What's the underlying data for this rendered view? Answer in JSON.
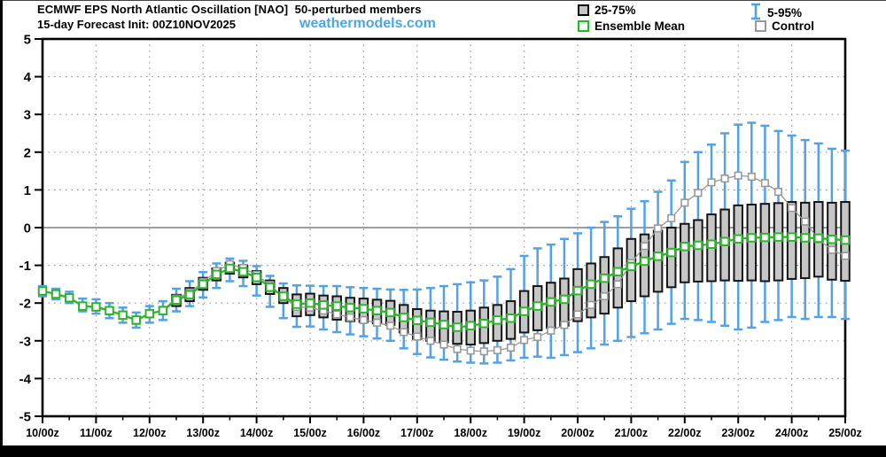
{
  "header": {
    "title": "ECMWF EPS North Atlantic Oscillation [NAO]  50-perturbed members",
    "subtitle": "15-day Forecast Init: 00Z10NOV2025",
    "watermark": "weathermodels.com",
    "watermark_color": "#4BA6E8"
  },
  "legend": {
    "items": [
      {
        "label": "25-75%",
        "swatch": "gray-box"
      },
      {
        "label": "5-95%",
        "swatch": "blue-whisker"
      },
      {
        "label": "Ensemble Mean",
        "swatch": "green-square"
      },
      {
        "label": "Control",
        "swatch": "white-square"
      }
    ]
  },
  "colors": {
    "whisker_blue": "#54A1E6",
    "mean_green": "#2DB42D",
    "box_fill": "#C6C6C6",
    "box_edge": "#141414",
    "control_gray": "#999999",
    "grid_gray": "#9A9A9A",
    "zero_line": "#7F7F7F",
    "frame": "#000000"
  },
  "chart_data": {
    "type": "box-whisker-timeseries",
    "title": "ECMWF EPS North Atlantic Oscillation [NAO] 50-perturbed members",
    "xlabel": "",
    "ylabel": "",
    "ylim": [
      -5,
      5
    ],
    "yticks": [
      5,
      4,
      3,
      2,
      1,
      0,
      -1,
      -2,
      -3,
      -4,
      -5
    ],
    "x_labels": [
      "10/00z",
      "11/00z",
      "12/00z",
      "13/00z",
      "14/00z",
      "15/00z",
      "16/00z",
      "17/00z",
      "18/00z",
      "19/00z",
      "20/00z",
      "21/00z",
      "22/00z",
      "23/00z",
      "24/00z",
      "25/00z"
    ],
    "points_per_day": 4,
    "grid": "dotted",
    "mean": [
      -1.68,
      -1.76,
      -1.86,
      -2.08,
      -2.1,
      -2.2,
      -2.32,
      -2.45,
      -2.28,
      -2.2,
      -1.92,
      -1.78,
      -1.5,
      -1.24,
      -1.08,
      -1.17,
      -1.32,
      -1.58,
      -1.82,
      -2.03,
      -2.0,
      -2.05,
      -2.08,
      -2.12,
      -2.15,
      -2.2,
      -2.25,
      -2.38,
      -2.46,
      -2.51,
      -2.57,
      -2.64,
      -2.6,
      -2.54,
      -2.45,
      -2.4,
      -2.22,
      -2.08,
      -1.97,
      -1.9,
      -1.67,
      -1.5,
      -1.34,
      -1.17,
      -1.03,
      -0.89,
      -0.76,
      -0.66,
      -0.5,
      -0.47,
      -0.44,
      -0.37,
      -0.3,
      -0.27,
      -0.26,
      -0.25,
      -0.25,
      -0.27,
      -0.28,
      -0.31,
      -0.33
    ],
    "control": [
      -1.68,
      -1.77,
      -1.87,
      -2.09,
      -2.12,
      -2.21,
      -2.33,
      -2.47,
      -2.3,
      -2.18,
      -1.88,
      -1.72,
      -1.44,
      -1.15,
      -0.97,
      -1.07,
      -1.25,
      -1.52,
      -1.85,
      -2.1,
      -2.12,
      -2.2,
      -2.3,
      -2.38,
      -2.45,
      -2.52,
      -2.6,
      -2.77,
      -2.89,
      -3.0,
      -3.1,
      -3.22,
      -3.26,
      -3.28,
      -3.25,
      -3.18,
      -2.98,
      -2.9,
      -2.73,
      -2.58,
      -2.3,
      -2.05,
      -1.82,
      -1.5,
      -0.94,
      -0.49,
      -0.02,
      0.25,
      0.66,
      0.92,
      1.2,
      1.3,
      1.38,
      1.35,
      1.18,
      0.95,
      0.52,
      0.16,
      -0.31,
      -0.59,
      -0.75
    ],
    "box_low": [
      null,
      null,
      null,
      null,
      null,
      null,
      null,
      null,
      null,
      null,
      -2.08,
      -1.95,
      -1.65,
      -1.4,
      -1.22,
      -1.32,
      -1.5,
      -1.76,
      -2.0,
      -2.35,
      -2.32,
      -2.38,
      -2.44,
      -2.48,
      -2.5,
      -2.54,
      -2.58,
      -2.78,
      -2.95,
      -3.0,
      -3.04,
      -3.08,
      -3.1,
      -3.06,
      -3.0,
      -2.95,
      -2.78,
      -2.72,
      -2.66,
      -2.6,
      -2.48,
      -2.38,
      -2.28,
      -2.12,
      -1.95,
      -1.82,
      -1.7,
      -1.58,
      -1.45,
      -1.43,
      -1.42,
      -1.4,
      -1.41,
      -1.4,
      -1.42,
      -1.4,
      -1.36,
      -1.34,
      -1.3,
      -1.38,
      -1.41
    ],
    "box_high": [
      null,
      null,
      null,
      null,
      null,
      null,
      null,
      null,
      null,
      null,
      -1.78,
      -1.6,
      -1.33,
      -1.08,
      -0.93,
      -1.0,
      -1.15,
      -1.4,
      -1.6,
      -1.77,
      -1.75,
      -1.8,
      -1.82,
      -1.86,
      -1.88,
      -1.91,
      -1.94,
      -2.05,
      -2.16,
      -2.2,
      -2.22,
      -2.23,
      -2.2,
      -2.12,
      -2.05,
      -1.95,
      -1.68,
      -1.55,
      -1.46,
      -1.35,
      -1.1,
      -0.95,
      -0.78,
      -0.55,
      -0.3,
      -0.18,
      -0.08,
      0.0,
      0.1,
      0.2,
      0.35,
      0.48,
      0.59,
      0.61,
      0.63,
      0.65,
      0.68,
      0.66,
      0.68,
      0.66,
      0.68
    ],
    "whisker_low": [
      -1.82,
      -1.9,
      -2.0,
      -2.22,
      -2.28,
      -2.4,
      -2.52,
      -2.65,
      -2.52,
      -2.45,
      -2.22,
      -2.08,
      -1.85,
      -1.6,
      -1.42,
      -1.55,
      -1.8,
      -2.1,
      -2.4,
      -2.63,
      -2.62,
      -2.7,
      -2.77,
      -2.83,
      -2.88,
      -2.94,
      -3.0,
      -3.2,
      -3.35,
      -3.44,
      -3.5,
      -3.55,
      -3.58,
      -3.6,
      -3.58,
      -3.52,
      -3.45,
      -3.42,
      -3.45,
      -3.38,
      -3.3,
      -3.2,
      -3.1,
      -3.0,
      -2.9,
      -2.8,
      -2.7,
      -2.55,
      -2.42,
      -2.45,
      -2.5,
      -2.6,
      -2.7,
      -2.65,
      -2.5,
      -2.45,
      -2.37,
      -2.42,
      -2.37,
      -2.37,
      -2.42
    ],
    "whisker_high": [
      -1.55,
      -1.62,
      -1.7,
      -1.88,
      -1.9,
      -2.0,
      -2.12,
      -2.25,
      -2.08,
      -1.95,
      -1.62,
      -1.42,
      -1.18,
      -0.95,
      -0.82,
      -0.88,
      -1.02,
      -1.28,
      -1.48,
      -1.53,
      -1.54,
      -1.55,
      -1.55,
      -1.58,
      -1.6,
      -1.62,
      -1.64,
      -1.65,
      -1.64,
      -1.6,
      -1.55,
      -1.5,
      -1.45,
      -1.4,
      -1.3,
      -1.1,
      -0.75,
      -0.55,
      -0.45,
      -0.3,
      -0.15,
      0.0,
      0.15,
      0.3,
      0.5,
      0.7,
      0.95,
      1.25,
      1.74,
      2.0,
      2.2,
      2.5,
      2.73,
      2.78,
      2.7,
      2.56,
      2.44,
      2.32,
      2.23,
      2.09,
      2.04
    ]
  }
}
